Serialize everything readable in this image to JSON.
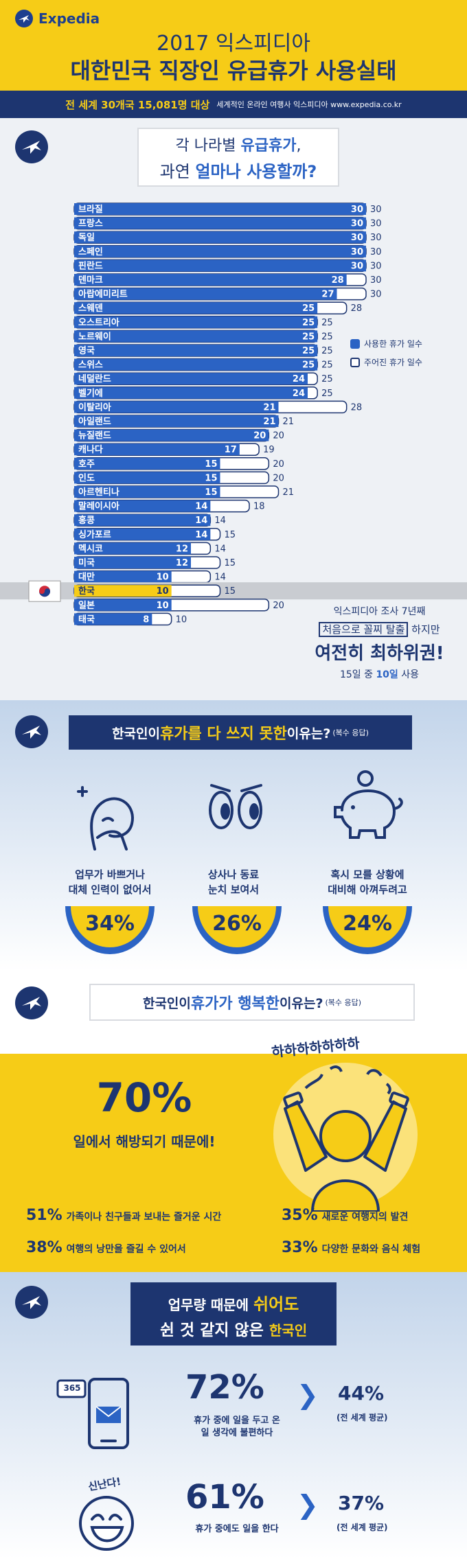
{
  "header": {
    "logo_text": "Expedia",
    "title_line1": "2017 익스피디아",
    "title_line2": "대한민국 직장인 유급휴가 사용실태",
    "strip_main": "전 세계 30개국 15,081명 대상",
    "strip_sub": "세계적인 온라인 여행사 익스피디아 www.expedia.co.kr"
  },
  "section1": {
    "q_line1_pre": "각 나라별 ",
    "q_line1_hl": "유급휴가",
    "q_line1_post": ",",
    "q_line2_pre": "과연 ",
    "q_line2_hl": "얼마나 사용할까?",
    "legend": {
      "used": "사용한 휴가 일수",
      "given": "주어진 휴가 일수"
    },
    "note": {
      "line1": "익스피디아 조사 7년째",
      "line2_box": "처음으로 꼴찌 탈출",
      "line2_post": "하지만",
      "line3": "여전히 최하위권!",
      "line4_pre": "15일 중 ",
      "line4_hl": "10일",
      "line4_post": " 사용"
    }
  },
  "chart_data": {
    "type": "bar",
    "orientation": "horizontal",
    "categories": [
      "브라질",
      "프랑스",
      "독일",
      "스페인",
      "핀란드",
      "덴마크",
      "아랍에미리트",
      "스웨덴",
      "오스트리아",
      "노르웨이",
      "영국",
      "스위스",
      "네덜란드",
      "벨기에",
      "이탈리아",
      "아일랜드",
      "뉴질랜드",
      "캐나다",
      "호주",
      "인도",
      "아르헨티나",
      "말레이시아",
      "홍콩",
      "싱가포르",
      "멕시코",
      "미국",
      "대만",
      "한국",
      "일본",
      "태국"
    ],
    "series": [
      {
        "name": "사용한 휴가 일수",
        "values": [
          30,
          30,
          30,
          30,
          30,
          28,
          27,
          25,
          25,
          25,
          25,
          25,
          24,
          24,
          21,
          21,
          20,
          17,
          15,
          15,
          15,
          14,
          14,
          14,
          12,
          12,
          10,
          10,
          10,
          8
        ]
      },
      {
        "name": "주어진 휴가 일수",
        "values": [
          30,
          30,
          30,
          30,
          30,
          30,
          30,
          28,
          25,
          25,
          25,
          25,
          25,
          25,
          28,
          21,
          20,
          19,
          20,
          20,
          21,
          18,
          14,
          15,
          14,
          15,
          14,
          15,
          20,
          10
        ]
      }
    ],
    "highlight_category": "한국",
    "legend_position": "right",
    "xlim": [
      0,
      30
    ]
  },
  "section2": {
    "title_pre": "한국인이 ",
    "title_hl": "휴가를 다 쓰지 못한",
    "title_post": " 이유는?",
    "title_note": "(복수 응답)",
    "reasons": [
      {
        "line1": "업무가 바쁘거나",
        "line2": "대체 인력이 없어서",
        "pct": "34%"
      },
      {
        "line1": "상사나 동료",
        "line2": "눈치 보여서",
        "pct": "26%"
      },
      {
        "line1": "혹시 모를 상황에",
        "line2": "대비해 아껴두려고",
        "pct": "24%"
      }
    ]
  },
  "section3": {
    "title_pre": "한국인이 ",
    "title_hl": "휴가가 행복한",
    "title_post": " 이유는?",
    "title_note": "(복수 응답)",
    "laugh": "하하하하하하하",
    "big_pct": "70%",
    "big_sub": "일에서 해방되기 때문에!",
    "stats": [
      {
        "pct": "51%",
        "text": "가족이나 친구들과 보내는 즐거운 시간"
      },
      {
        "pct": "35%",
        "text": "새로운 여행지의 발견"
      },
      {
        "pct": "38%",
        "text": "여행의 낭만을 즐길 수 있어서"
      },
      {
        "pct": "33%",
        "text": "다양한 문화와 음식 체험"
      }
    ]
  },
  "section4": {
    "title1_pre": "업무량 때문에 ",
    "title1_hl": "쉬어도",
    "title2_pre": "쉰 것 같지 않은 ",
    "title2_hl": "한국인",
    "badge": "365",
    "exclaim": "신난다!",
    "rows": [
      {
        "pct": "72%",
        "sub1": "휴가 중에 일을 두고 온",
        "sub2": "일 생각에 불편하다",
        "avg": "44%",
        "avg_label": "(전 세계 평균)"
      },
      {
        "pct": "61%",
        "sub1": "휴가 중에도 일을 한다",
        "sub2": "",
        "avg": "37%",
        "avg_label": "(전 세계 평균)"
      }
    ]
  },
  "colors": {
    "navy": "#1d3570",
    "blue": "#2b63c4",
    "yellow": "#f6cc17",
    "korea_highlight": "#f6cc17"
  }
}
